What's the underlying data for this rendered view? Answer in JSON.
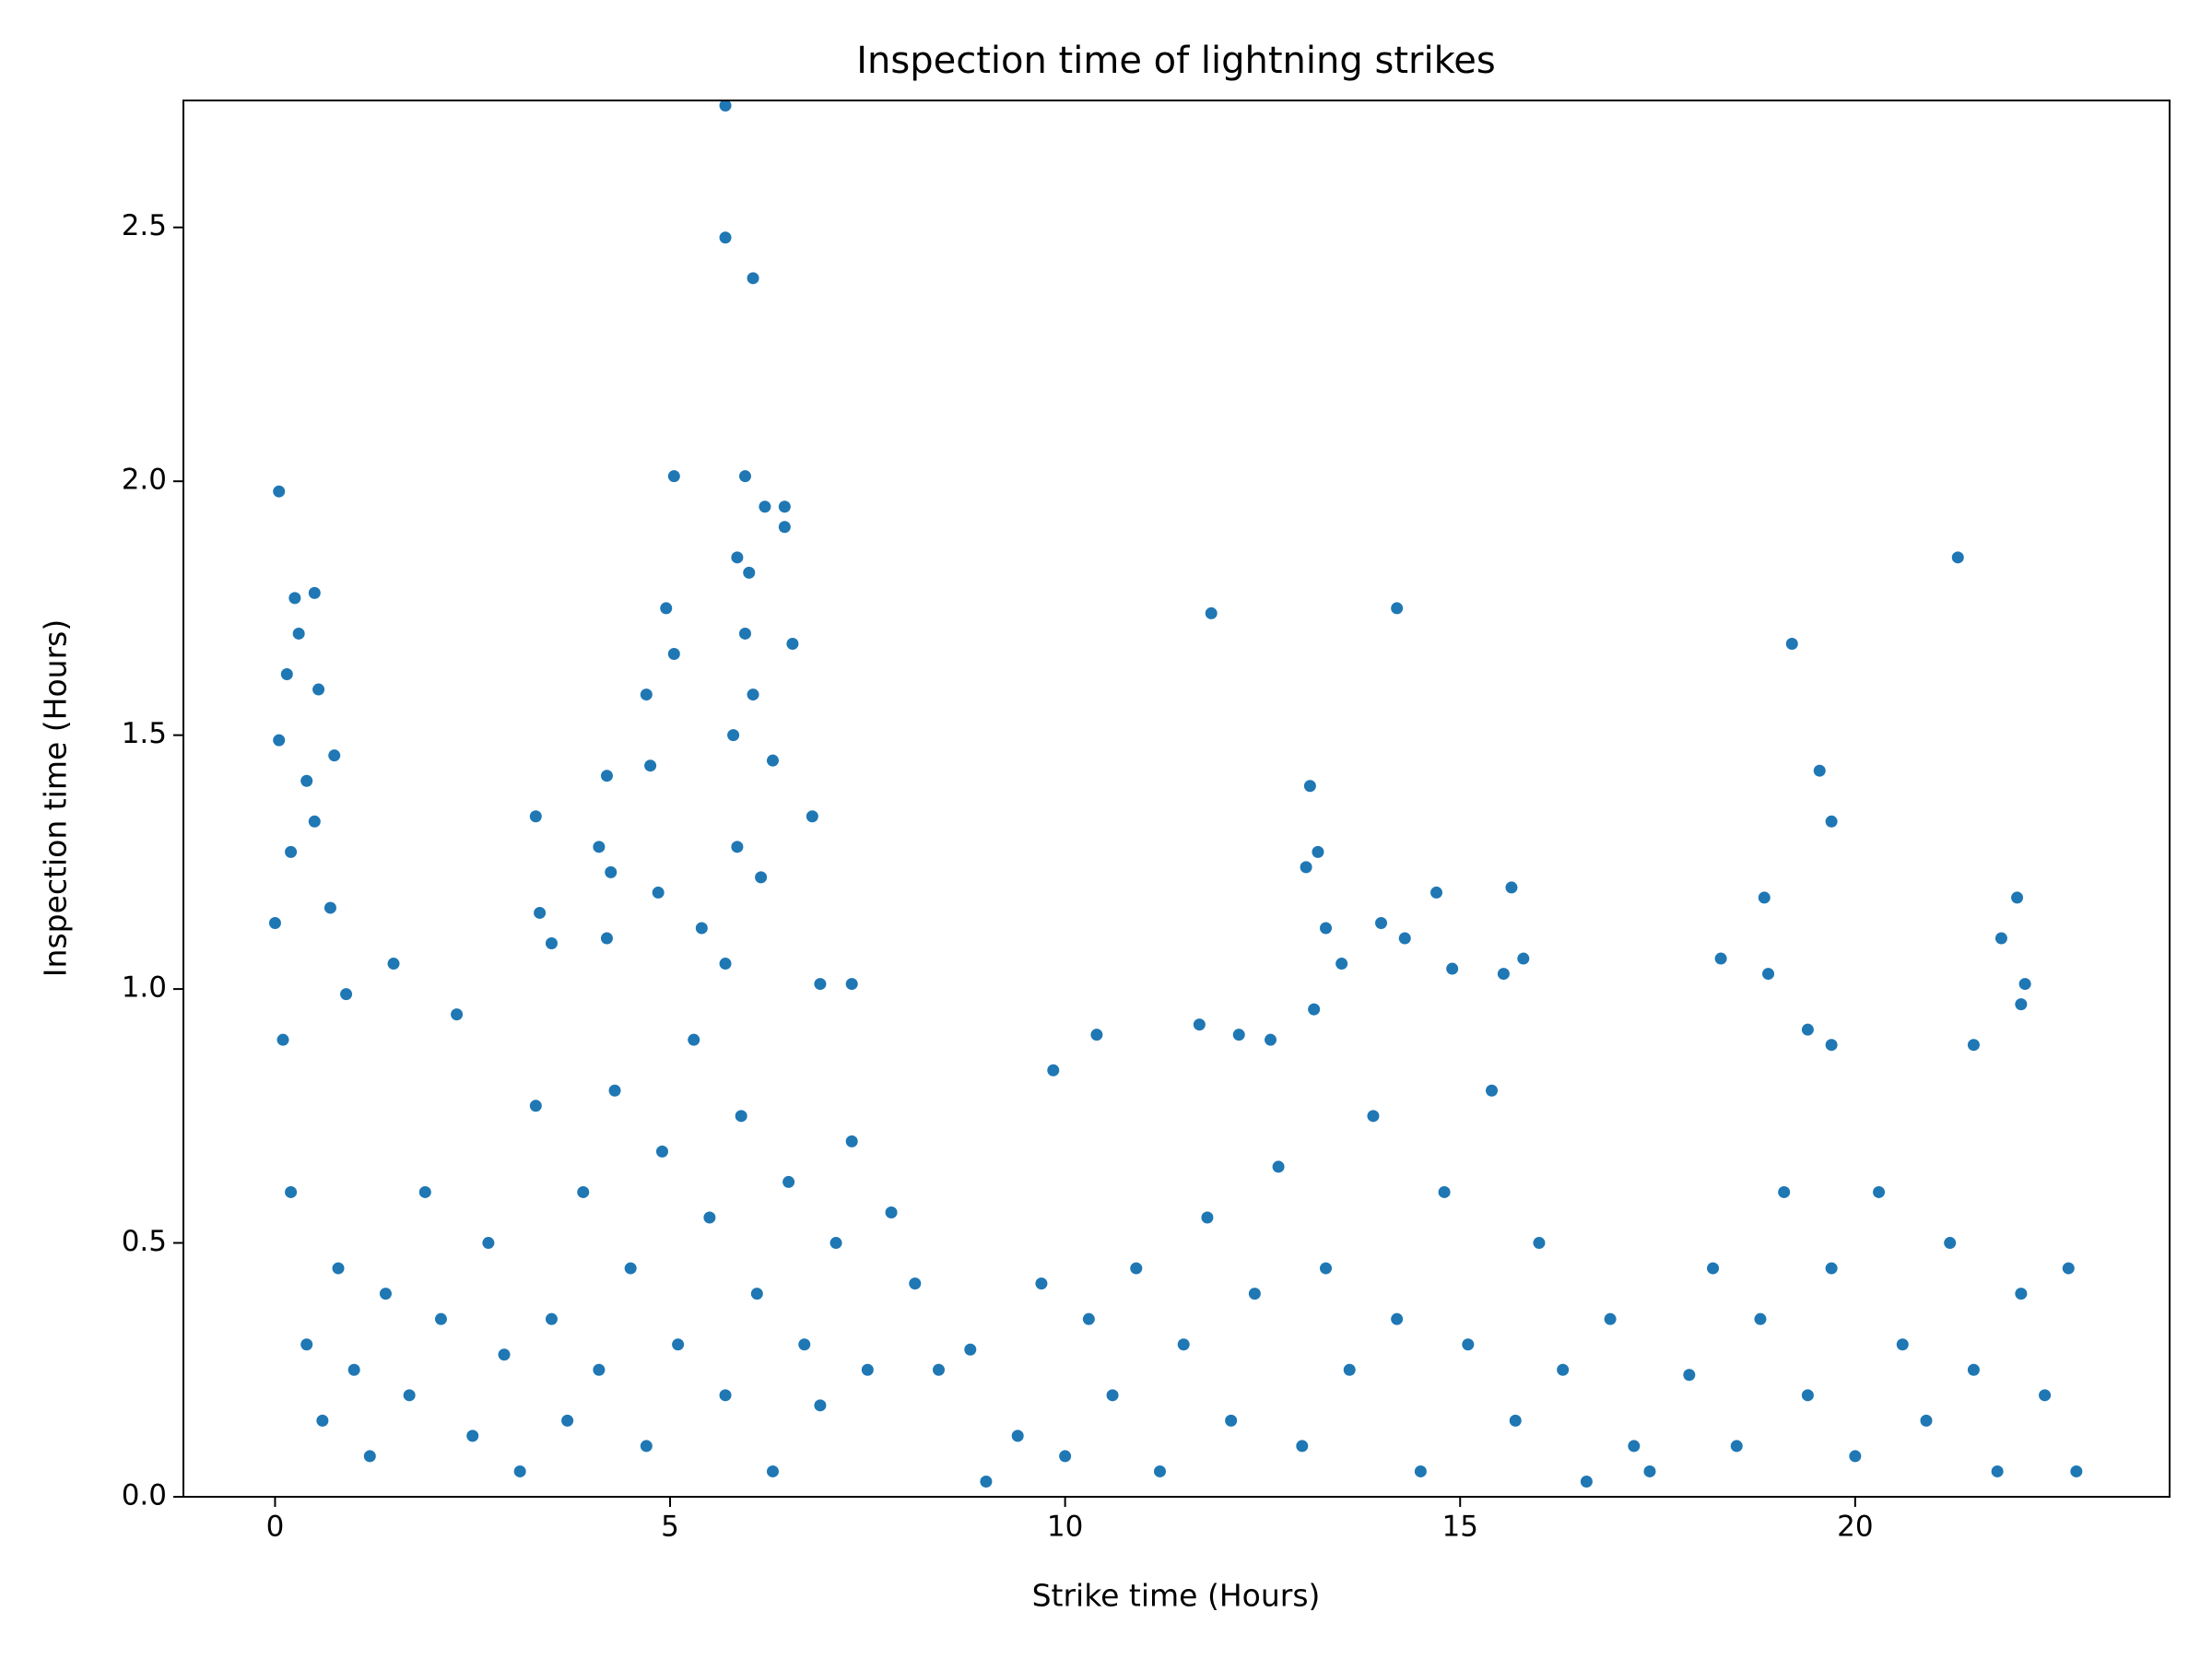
{
  "chart_data": {
    "type": "scatter",
    "title": "Inspection time of lightning strikes",
    "xlabel": "Strike time (Hours)",
    "ylabel": "Inspection time (Hours)",
    "color": "#1f77b4",
    "xlim": [
      -1.16,
      23.98
    ],
    "ylim": [
      0,
      2.75
    ],
    "xticks": [
      0,
      5,
      10,
      15,
      20
    ],
    "yticks": [
      {
        "value": 0,
        "label": "0.0"
      },
      0.5,
      {
        "value": 1,
        "label": "1.0"
      },
      1.5,
      {
        "value": 2,
        "label": "2.0"
      },
      2.5
    ],
    "x": [
      5.7,
      5.7,
      6.05,
      0.05,
      5.05,
      5.95,
      6.2,
      6.45,
      6.45,
      11.85,
      14.2,
      21.3,
      19.2,
      19.55,
      19.7,
      13.1,
      18.85,
      22.05,
      15.65,
      0.5,
      0.25,
      4.7,
      4.95,
      5.05,
      4.2,
      4.75,
      3.3,
      10.4,
      9.85,
      0.3,
      0.55,
      0.15,
      0.75,
      0.05,
      0.4,
      0.5,
      0.2,
      0.0,
      0.7,
      1.5,
      0.9,
      0.1,
      5.85,
      6.0,
      5.95,
      6.55,
      6.05,
      5.8,
      6.3,
      6.8,
      5.85,
      6.15,
      6.9,
      7.3,
      4.85,
      5.4,
      4.1,
      4.25,
      4.2,
      3.5,
      3.35,
      5.7,
      13.2,
      13.05,
      13.3,
      13.5,
      14.0,
      14.3,
      14.7,
      14.9,
      15.55,
      15.8,
      11.7,
      12.2,
      12.6,
      13.15,
      18.3,
      18.9,
      21.85,
      22.15,
      22.1,
      21.5,
      19.4,
      19.7,
      0.2,
      0.4,
      0.6,
      0.8,
      1.0,
      1.2,
      1.4,
      1.7,
      1.9,
      2.1,
      2.3,
      2.5,
      2.7,
      2.9,
      3.1,
      3.3,
      3.5,
      3.7,
      3.9,
      4.1,
      4.3,
      4.5,
      4.7,
      4.9,
      5.1,
      5.3,
      5.5,
      5.7,
      5.9,
      6.1,
      6.3,
      6.5,
      6.7,
      6.9,
      7.1,
      7.3,
      7.5,
      7.8,
      8.1,
      8.4,
      8.8,
      9.0,
      9.4,
      9.7,
      10.0,
      10.3,
      10.6,
      10.9,
      11.2,
      11.5,
      11.8,
      12.1,
      12.4,
      12.7,
      13.0,
      13.3,
      13.6,
      13.9,
      14.2,
      14.5,
      14.8,
      15.1,
      15.4,
      15.7,
      16.0,
      16.3,
      16.6,
      16.9,
      17.2,
      17.4,
      17.9,
      18.2,
      18.5,
      18.8,
      19.1,
      19.4,
      19.7,
      20.0,
      20.3,
      20.6,
      20.9,
      21.2,
      21.5,
      21.8,
      22.1,
      22.4,
      22.7,
      22.8
    ],
    "y": [
      2.74,
      2.48,
      2.4,
      1.98,
      2.01,
      2.01,
      1.95,
      1.95,
      1.91,
      1.74,
      1.75,
      1.85,
      1.68,
      1.43,
      1.33,
      1.4,
      1.18,
      1.18,
      1.2,
      1.78,
      1.77,
      1.58,
      1.75,
      1.66,
      1.42,
      1.44,
      1.34,
      0.91,
      0.84,
      1.7,
      1.59,
      1.62,
      1.46,
      1.49,
      1.41,
      1.33,
      1.27,
      1.13,
      1.16,
      1.05,
      0.99,
      0.9,
      1.85,
      1.82,
      1.7,
      1.68,
      1.58,
      1.5,
      1.45,
      1.34,
      1.28,
      1.22,
      1.01,
      1.01,
      1.19,
      1.12,
      1.28,
      1.23,
      1.1,
      1.09,
      1.15,
      1.05,
      1.27,
      1.24,
      1.12,
      1.05,
      1.13,
      1.1,
      1.19,
      1.04,
      1.03,
      1.06,
      0.93,
      0.91,
      0.9,
      0.96,
      1.06,
      1.03,
      1.1,
      1.01,
      0.97,
      0.89,
      0.92,
      0.89,
      0.6,
      0.3,
      0.15,
      0.45,
      0.25,
      0.08,
      0.4,
      0.2,
      0.6,
      0.35,
      0.95,
      0.12,
      0.5,
      0.28,
      0.05,
      0.77,
      0.35,
      0.15,
      0.6,
      0.25,
      0.8,
      0.45,
      0.1,
      0.68,
      0.3,
      0.9,
      0.55,
      0.2,
      0.75,
      0.4,
      0.05,
      0.62,
      0.3,
      0.18,
      0.5,
      0.7,
      0.25,
      0.56,
      0.42,
      0.25,
      0.29,
      0.03,
      0.12,
      0.42,
      0.08,
      0.35,
      0.2,
      0.45,
      0.05,
      0.3,
      0.55,
      0.15,
      0.4,
      0.65,
      0.1,
      0.45,
      0.25,
      0.75,
      0.35,
      0.05,
      0.6,
      0.3,
      0.8,
      0.15,
      0.5,
      0.25,
      0.03,
      0.35,
      0.1,
      0.05,
      0.24,
      0.45,
      0.1,
      0.35,
      0.6,
      0.2,
      0.45,
      0.08,
      0.6,
      0.3,
      0.15,
      0.5,
      0.25,
      0.05,
      0.4,
      0.2,
      0.45,
      0.05
    ]
  }
}
